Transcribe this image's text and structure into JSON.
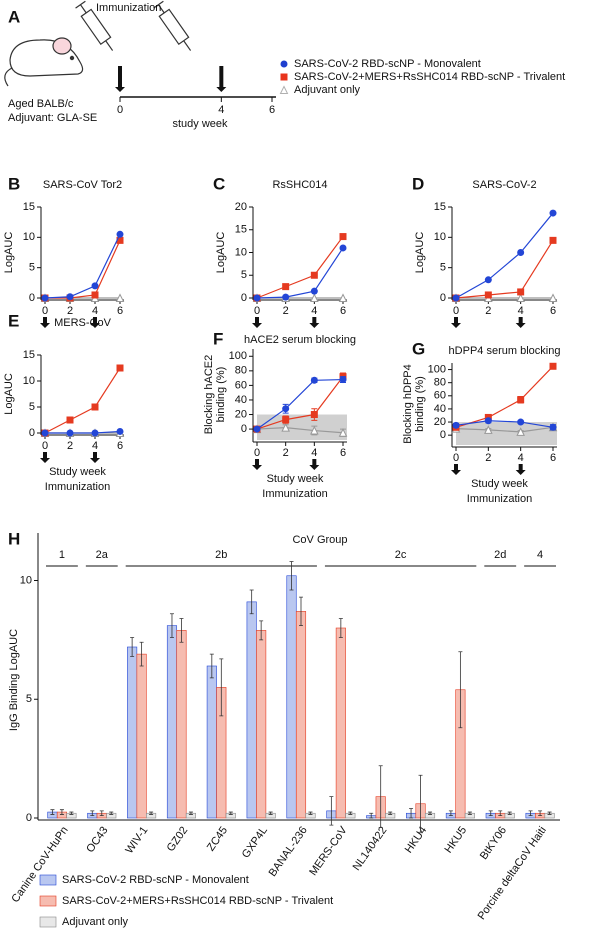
{
  "panel_a": {
    "label": "A",
    "immunization": "Immunization",
    "mouse_line1": "Aged BALB/c",
    "mouse_line2": "Adjuvant: GLA-SE",
    "xlim": [
      0,
      6
    ],
    "xticks": [
      0,
      4,
      6
    ],
    "xlabel": "study week",
    "immunization_weeks": [
      0,
      4
    ],
    "legend": [
      {
        "name": "SARS-CoV-2 RBD-scNP - Monovalent",
        "color": "#1f3fcf",
        "marker": "circle"
      },
      {
        "name": "SARS-CoV-2+MERS+RsSHC014 RBD-scNP - Trivalent",
        "color": "#e8331c",
        "marker": "square"
      },
      {
        "name": "Adjuvant only",
        "color": "#b0b0b0",
        "marker": "triangle"
      }
    ]
  },
  "chart_data": [
    {
      "type": "line",
      "panel": "B",
      "title": "SARS-CoV Tor2",
      "ylabel": [
        "LogAUC"
      ],
      "x": [
        0,
        2,
        4,
        6
      ],
      "xlim": [
        0,
        6
      ],
      "xticks": [
        0,
        2,
        4,
        6
      ],
      "ylim": [
        0,
        15
      ],
      "yticks": [
        0,
        5,
        10,
        15
      ],
      "immunization_weeks": [
        0,
        4
      ],
      "series": [
        {
          "name": "Monovalent",
          "color": "#2346d6",
          "marker": "circle",
          "values": [
            0,
            0.2,
            2,
            10.5
          ]
        },
        {
          "name": "Trivalent",
          "color": "#e53a20",
          "marker": "square",
          "values": [
            0,
            0,
            0.5,
            9.5
          ]
        },
        {
          "name": "Adjuvant",
          "color": "#999999",
          "marker": "triangle",
          "values": [
            0,
            0,
            0,
            0
          ]
        }
      ]
    },
    {
      "type": "line",
      "panel": "C",
      "title": "RsSHC014",
      "ylabel": [
        "LogAUC"
      ],
      "x": [
        0,
        2,
        4,
        6
      ],
      "xlim": [
        0,
        6
      ],
      "xticks": [
        0,
        2,
        4,
        6
      ],
      "ylim": [
        0,
        20
      ],
      "yticks": [
        0,
        5,
        10,
        15,
        20
      ],
      "immunization_weeks": [
        0,
        4
      ],
      "series": [
        {
          "name": "Monovalent",
          "color": "#2346d6",
          "marker": "circle",
          "values": [
            0,
            0.2,
            1.5,
            11
          ]
        },
        {
          "name": "Trivalent",
          "color": "#e53a20",
          "marker": "square",
          "values": [
            0,
            2.5,
            5,
            13.5
          ]
        },
        {
          "name": "Adjuvant",
          "color": "#999999",
          "marker": "triangle",
          "values": [
            0,
            0,
            0,
            0
          ]
        }
      ]
    },
    {
      "type": "line",
      "panel": "D",
      "title": "SARS-CoV-2",
      "ylabel": [
        "LogAUC"
      ],
      "x": [
        0,
        2,
        4,
        6
      ],
      "xlim": [
        0,
        6
      ],
      "xticks": [
        0,
        2,
        4,
        6
      ],
      "ylim": [
        0,
        15
      ],
      "yticks": [
        0,
        5,
        10,
        15
      ],
      "immunization_weeks": [
        0,
        4
      ],
      "series": [
        {
          "name": "Monovalent",
          "color": "#2346d6",
          "marker": "circle",
          "values": [
            0,
            3,
            7.5,
            14
          ]
        },
        {
          "name": "Trivalent",
          "color": "#e53a20",
          "marker": "square",
          "values": [
            0,
            0.5,
            1,
            9.5
          ]
        },
        {
          "name": "Adjuvant",
          "color": "#999999",
          "marker": "triangle",
          "values": [
            0,
            0,
            0,
            0
          ]
        }
      ]
    },
    {
      "type": "line",
      "panel": "E",
      "title": "MERS-CoV",
      "ylabel": [
        "LogAUC"
      ],
      "xlabel": [
        "Study week",
        "Immunization"
      ],
      "x": [
        0,
        2,
        4,
        6
      ],
      "xlim": [
        0,
        6
      ],
      "xticks": [
        0,
        2,
        4,
        6
      ],
      "ylim": [
        0,
        15
      ],
      "yticks": [
        0,
        5,
        10,
        15
      ],
      "immunization_weeks": [
        0,
        4
      ],
      "series": [
        {
          "name": "Monovalent",
          "color": "#2346d6",
          "marker": "circle",
          "values": [
            0,
            0,
            0,
            0.3
          ]
        },
        {
          "name": "Trivalent",
          "color": "#e53a20",
          "marker": "square",
          "values": [
            0,
            2.5,
            5,
            12.5
          ]
        },
        {
          "name": "Adjuvant",
          "color": "#999999",
          "marker": "triangle",
          "values": [
            0,
            0,
            0,
            0
          ]
        }
      ]
    },
    {
      "type": "line",
      "panel": "F",
      "title": "hACE2 serum blocking",
      "ylabel": [
        "Blocking hACE2",
        "binding (%)"
      ],
      "xlabel": [
        "Study week",
        "Immunization"
      ],
      "x": [
        0,
        2,
        4,
        6
      ],
      "xlim": [
        0,
        6
      ],
      "xticks": [
        0,
        2,
        4,
        6
      ],
      "ylim": [
        -15,
        110
      ],
      "yticks": [
        0,
        20,
        40,
        60,
        80,
        100
      ],
      "immunization_weeks": [
        0,
        4
      ],
      "shade_to": 20,
      "series": [
        {
          "name": "Monovalent",
          "color": "#2346d6",
          "marker": "circle",
          "values": [
            0,
            28,
            67,
            68
          ],
          "errors": [
            2,
            6,
            3,
            4
          ]
        },
        {
          "name": "Trivalent",
          "color": "#e53a20",
          "marker": "square",
          "values": [
            0,
            13,
            20,
            72
          ],
          "errors": [
            2,
            5,
            8,
            5
          ]
        },
        {
          "name": "Adjuvant",
          "color": "#999999",
          "marker": "triangle",
          "values": [
            0,
            2,
            -2,
            -5
          ],
          "errors": [
            2,
            4,
            6,
            5
          ]
        }
      ]
    },
    {
      "type": "line",
      "panel": "G",
      "title": "hDPP4 serum blocking",
      "ylabel": [
        "Blocking hDPP4",
        "binding (%)"
      ],
      "xlabel": [
        "Study week",
        "Immunization"
      ],
      "x": [
        0,
        2,
        4,
        6
      ],
      "xlim": [
        0,
        6
      ],
      "xticks": [
        0,
        2,
        4,
        6
      ],
      "ylim": [
        -15,
        110
      ],
      "yticks": [
        0,
        20,
        40,
        60,
        80,
        100
      ],
      "immunization_weeks": [
        0,
        4
      ],
      "shade_to": 20,
      "series": [
        {
          "name": "Monovalent",
          "color": "#2346d6",
          "marker": "circle",
          "values": [
            15,
            22,
            20,
            12
          ],
          "errors": [
            3,
            3,
            2,
            4
          ]
        },
        {
          "name": "Trivalent",
          "color": "#e53a20",
          "marker": "square",
          "values": [
            12,
            27,
            54,
            105
          ],
          "errors": [
            3,
            3,
            5,
            2
          ]
        },
        {
          "name": "Adjuvant",
          "color": "#999999",
          "marker": "triangle",
          "values": [
            10,
            8,
            5,
            12
          ],
          "errors": [
            2,
            2,
            2,
            3
          ]
        }
      ]
    },
    {
      "type": "grouped_bar",
      "panel": "H",
      "group_title": "CoV Group",
      "ylabel": [
        "IgG Binding LogAUC"
      ],
      "ylim": [
        0,
        12
      ],
      "yticks": [
        0,
        5,
        10
      ],
      "categories": [
        "Canine CoV-HuPn",
        "OC43",
        "WIV-1",
        "GZ02",
        "ZC45",
        "GXP4L",
        "BANAL-236",
        "MERS-CoV",
        "NL140422",
        "HKU4",
        "HKU5",
        "BtKY06",
        "Porcine deltaCoV Haiti"
      ],
      "groups": [
        {
          "label": "1",
          "size": 1
        },
        {
          "label": "2a",
          "size": 1
        },
        {
          "label": "2b",
          "size": 5
        },
        {
          "label": "2c",
          "size": 4
        },
        {
          "label": "2d",
          "size": 1
        },
        {
          "label": "4",
          "size": 1
        }
      ],
      "series": [
        {
          "name": "SARS-CoV-2 RBD-scNP - Monovalent",
          "color": "#b9c7f0",
          "edge": "#2346d6",
          "values": [
            0.25,
            0.2,
            7.2,
            8.1,
            6.4,
            9.1,
            10.2,
            0.3,
            0.1,
            0.2,
            0.2,
            0.2,
            0.2
          ],
          "errors": [
            0.1,
            0.1,
            0.4,
            0.5,
            0.5,
            0.5,
            0.6,
            0.6,
            0.1,
            0.2,
            0.1,
            0.1,
            0.1
          ]
        },
        {
          "name": "SARS-CoV-2+MERS+RsSHC014 RBD-scNP - Trivalent",
          "color": "#f6bcb0",
          "edge": "#e53a20",
          "values": [
            0.25,
            0.2,
            6.9,
            7.9,
            5.5,
            7.9,
            8.7,
            8.0,
            0.9,
            0.6,
            5.4,
            0.2,
            0.2
          ],
          "errors": [
            0.1,
            0.1,
            0.5,
            0.5,
            1.2,
            0.4,
            0.6,
            0.4,
            1.3,
            1.2,
            1.6,
            0.1,
            0.1
          ]
        },
        {
          "name": "Adjuvant only",
          "color": "#e8e8e8",
          "edge": "#888888",
          "values": [
            0.2,
            0.2,
            0.2,
            0.2,
            0.2,
            0.2,
            0.2,
            0.2,
            0.2,
            0.2,
            0.2,
            0.2,
            0.2
          ],
          "errors": [
            0.05,
            0.05,
            0.05,
            0.05,
            0.05,
            0.05,
            0.05,
            0.05,
            0.05,
            0.05,
            0.05,
            0.05,
            0.05
          ]
        }
      ]
    }
  ]
}
